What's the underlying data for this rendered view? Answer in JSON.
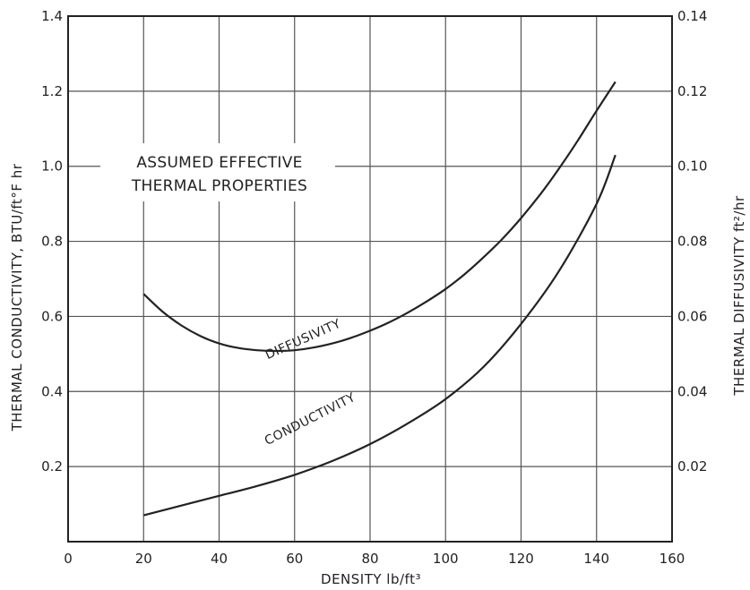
{
  "chart_data": {
    "type": "line",
    "annotation_lines": [
      "ASSUMED EFFECTIVE",
      "THERMAL PROPERTIES"
    ],
    "xlabel": "DENSITY  lb/ft³",
    "ylabel_left": "THERMAL CONDUCTIVITY, BTU/ft°F hr",
    "ylabel_right": "THERMAL DIFFUSIVITY  ft²/hr",
    "xlim": [
      0,
      160
    ],
    "ylim_left": [
      0,
      1.4
    ],
    "ylim_right": [
      0,
      0.14
    ],
    "x_ticks": [
      "0",
      "20",
      "40",
      "60",
      "80",
      "100",
      "120",
      "140",
      "160"
    ],
    "y_left_ticks": [
      "0.2",
      "0.4",
      "0.6",
      "0.8",
      "1.0",
      "1.2",
      "1.4"
    ],
    "y_right_ticks": [
      "0.02",
      "0.04",
      "0.06",
      "0.08",
      "0.10",
      "0.12",
      "0.14"
    ],
    "grid": true,
    "series": [
      {
        "name": "DIFFUSIVITY",
        "axis": "right",
        "x": [
          20,
          25,
          30,
          35,
          40,
          45,
          50,
          55,
          60,
          65,
          70,
          75,
          80,
          85,
          90,
          95,
          100,
          105,
          110,
          115,
          120,
          125,
          130,
          135,
          140,
          145
        ],
        "values": [
          0.066,
          0.0613,
          0.0576,
          0.0548,
          0.0528,
          0.0516,
          0.051,
          0.0508,
          0.051,
          0.0517,
          0.0528,
          0.0543,
          0.0562,
          0.0584,
          0.061,
          0.064,
          0.0673,
          0.0712,
          0.0757,
          0.0806,
          0.0862,
          0.0924,
          0.0993,
          0.1068,
          0.1148,
          0.1225
        ]
      },
      {
        "name": "CONDUCTIVITY",
        "axis": "left",
        "x": [
          20,
          30,
          40,
          50,
          60,
          70,
          80,
          90,
          100,
          110,
          120,
          130,
          140,
          145
        ],
        "values": [
          0.07,
          0.096,
          0.122,
          0.148,
          0.178,
          0.215,
          0.26,
          0.315,
          0.38,
          0.465,
          0.58,
          0.72,
          0.9,
          1.03
        ]
      }
    ]
  }
}
